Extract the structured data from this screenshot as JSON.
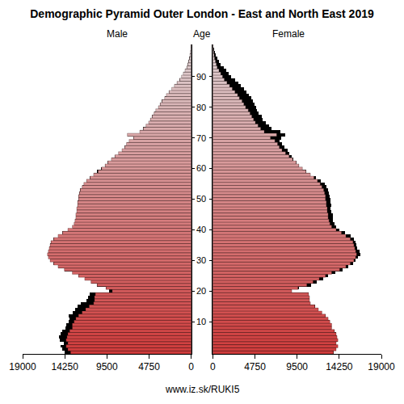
{
  "chart_data": {
    "type": "pyramid",
    "title": "Demographic Pyramid Outer London - East and North East 2019",
    "orientation": "horizontal",
    "categories": [
      0,
      1,
      2,
      3,
      4,
      5,
      6,
      7,
      8,
      9,
      10,
      11,
      12,
      13,
      14,
      15,
      16,
      17,
      18,
      19,
      20,
      21,
      22,
      23,
      24,
      25,
      26,
      27,
      28,
      29,
      30,
      31,
      32,
      33,
      34,
      35,
      36,
      37,
      38,
      39,
      40,
      41,
      42,
      43,
      44,
      45,
      46,
      47,
      48,
      49,
      50,
      51,
      52,
      53,
      54,
      55,
      56,
      57,
      58,
      59,
      60,
      61,
      62,
      63,
      64,
      65,
      66,
      67,
      68,
      69,
      70,
      71,
      72,
      73,
      74,
      75,
      76,
      77,
      78,
      79,
      80,
      81,
      82,
      83,
      84,
      85,
      86,
      87,
      88,
      89,
      90,
      91,
      92,
      93,
      94,
      95,
      96,
      97,
      98,
      99,
      100
    ],
    "series": [
      {
        "name": "Male",
        "color": "#d03c3c",
        "values": [
          14300,
          14500,
          14700,
          14400,
          14800,
          14900,
          14700,
          14500,
          14200,
          14100,
          13800,
          13700,
          13800,
          13400,
          13100,
          12800,
          12400,
          11800,
          11600,
          11400,
          9300,
          9600,
          10600,
          11300,
          12000,
          12700,
          13400,
          14300,
          15000,
          15500,
          15900,
          16100,
          16200,
          16100,
          16000,
          15900,
          15800,
          15500,
          15000,
          14500,
          13900,
          13400,
          13200,
          13100,
          13000,
          13000,
          12900,
          12900,
          12800,
          12800,
          12700,
          12700,
          12600,
          12500,
          12300,
          12100,
          11800,
          11400,
          11000,
          10600,
          10200,
          9700,
          9400,
          9000,
          8600,
          8200,
          7800,
          7500,
          7300,
          7000,
          6500,
          7200,
          5800,
          5400,
          5100,
          4800,
          4600,
          4400,
          4200,
          4000,
          3700,
          3500,
          3300,
          3000,
          2800,
          2500,
          2200,
          1900,
          1600,
          1300,
          1100,
          900,
          700,
          500,
          400,
          300,
          200,
          150,
          100,
          60,
          50
        ]
      },
      {
        "name": "Female",
        "color": "#d03c3c",
        "values": [
          13600,
          13900,
          14100,
          13900,
          14100,
          14000,
          13900,
          13700,
          13400,
          13400,
          13200,
          13000,
          12700,
          12300,
          11900,
          11500,
          11000,
          10900,
          10900,
          10800,
          8900,
          9700,
          11100,
          11700,
          12400,
          13000,
          13800,
          14600,
          15300,
          15800,
          16100,
          16400,
          16600,
          16500,
          16300,
          16200,
          16100,
          15900,
          15500,
          14900,
          14300,
          13900,
          13700,
          13500,
          13500,
          13500,
          13400,
          13300,
          13400,
          13300,
          13300,
          13200,
          13100,
          13000,
          12800,
          12600,
          12200,
          11600,
          11000,
          10500,
          10100,
          9700,
          9400,
          9100,
          8900,
          8600,
          8400,
          8100,
          7800,
          7500,
          7700,
          8200,
          7600,
          6600,
          6300,
          6000,
          5600,
          5500,
          5200,
          5000,
          4900,
          4700,
          4500,
          4300,
          4100,
          3800,
          3500,
          3200,
          2900,
          2500,
          2100,
          1800,
          1500,
          1200,
          900,
          700,
          500,
          350,
          250,
          150,
          100
        ]
      }
    ],
    "xlim": [
      0,
      19000
    ],
    "xticks": [
      0,
      4750,
      9500,
      14250,
      19000
    ],
    "ylim": [
      -0.5,
      100.5
    ],
    "yticks": [
      10,
      20,
      30,
      40,
      50,
      60,
      70,
      80,
      90
    ],
    "annotations": [
      {
        "text": "Age"
      },
      {
        "text": "www.iz.sk/RUKI5"
      }
    ],
    "grid": false
  }
}
